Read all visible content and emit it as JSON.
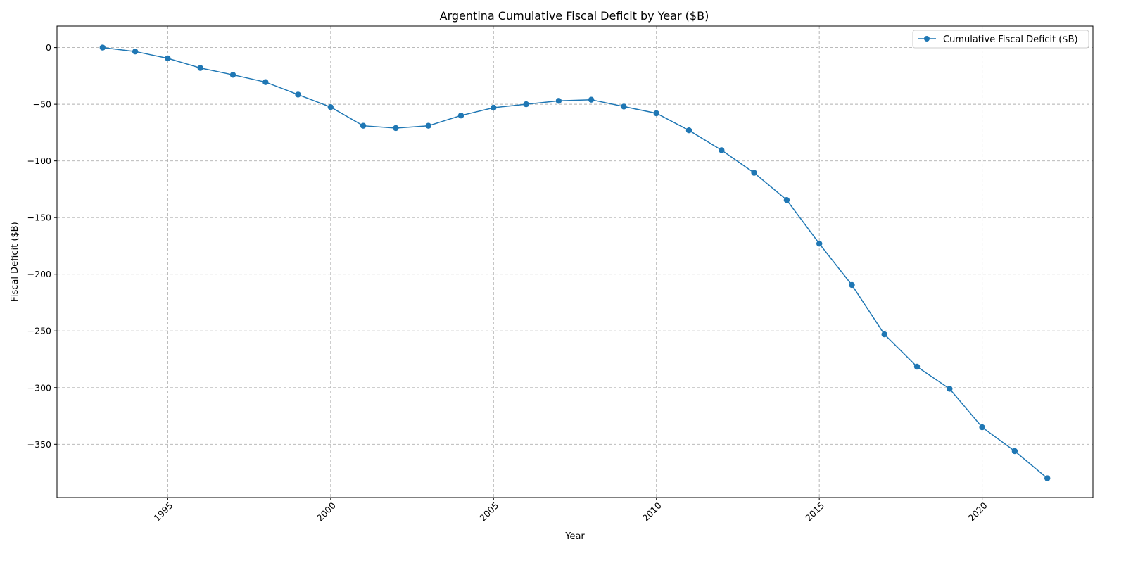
{
  "chart_data": {
    "type": "line",
    "title": "Argentina Cumulative Fiscal Deficit by Year ($B)",
    "xlabel": "Year",
    "ylabel": "Fiscal Deficit ($B)",
    "xlim": [
      1991.6,
      2023.4
    ],
    "ylim": [
      -397,
      19
    ],
    "xticks": [
      1995,
      2000,
      2005,
      2010,
      2015,
      2020
    ],
    "yticks": [
      0,
      -50,
      -100,
      -150,
      -200,
      -250,
      -300,
      -350
    ],
    "ytick_labels": [
      "0",
      "−50",
      "−100",
      "−150",
      "−200",
      "−250",
      "−300",
      "−350"
    ],
    "grid": true,
    "legend_position": "top-right",
    "line_color": "#1f77b4",
    "series": [
      {
        "name": "Cumulative Fiscal Deficit ($B)",
        "x": [
          1993,
          1994,
          1995,
          1996,
          1997,
          1998,
          1999,
          2000,
          2001,
          2002,
          2003,
          2004,
          2005,
          2006,
          2007,
          2008,
          2009,
          2010,
          2011,
          2012,
          2013,
          2014,
          2015,
          2016,
          2017,
          2018,
          2019,
          2020,
          2021,
          2022
        ],
        "values": [
          0,
          -3.5,
          -9.5,
          -18,
          -24,
          -30.5,
          -41.5,
          -52.5,
          -69,
          -71,
          -69,
          -60,
          -53,
          -50,
          -47,
          -46,
          -52,
          -58,
          -73,
          -90.5,
          -110.5,
          -134.5,
          -173,
          -209.5,
          -253,
          -281.5,
          -301,
          -335,
          -356,
          -380
        ]
      }
    ]
  }
}
